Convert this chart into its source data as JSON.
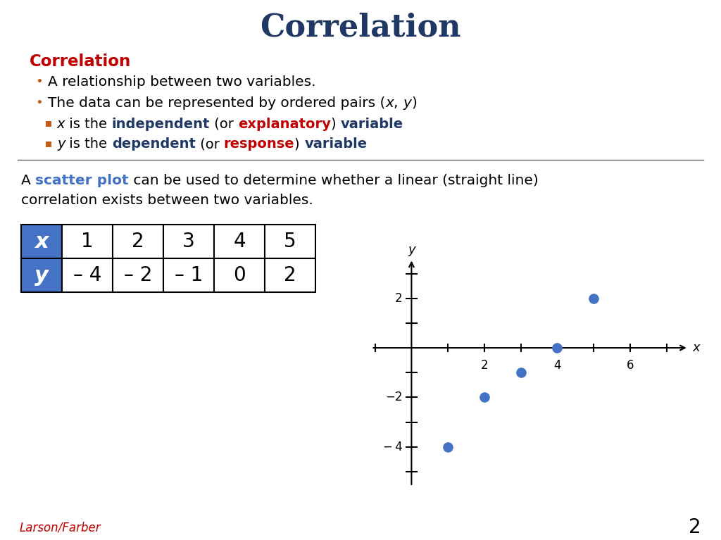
{
  "title": "Correlation",
  "title_color": "#1F3864",
  "title_fontsize": 32,
  "bg_color": "#FFFFFF",
  "section_heading": "Correlation",
  "section_heading_color": "#C00000",
  "scatter_color": "#4472C4",
  "table_header_bg": "#4472C4",
  "table_header_color": "#FFFFFF",
  "table_border_color": "#000000",
  "table_x_values": [
    1,
    2,
    3,
    4,
    5
  ],
  "table_y_values": [
    "– 4",
    "– 2",
    "– 1",
    "0",
    "2"
  ],
  "scatter_x": [
    1,
    2,
    3,
    4,
    5
  ],
  "scatter_y": [
    -4,
    -2,
    -1,
    0,
    2
  ],
  "footer_text": "Larson/Farber",
  "footer_color": "#C00000",
  "page_number": "2",
  "dark_blue": "#1F3864",
  "red_color": "#C00000",
  "orange_color": "#C55A11",
  "blue_color": "#4472C4",
  "black": "#000000"
}
